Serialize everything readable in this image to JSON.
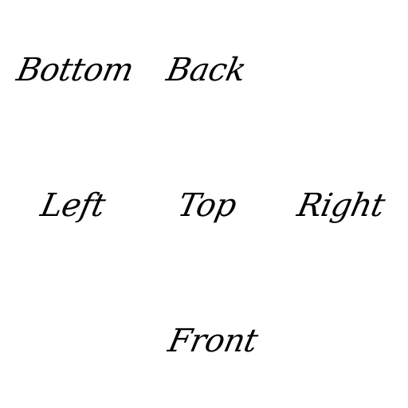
{
  "faces": {
    "bottom": "Bottom",
    "back": "Back",
    "left": "Left",
    "top": "Top",
    "right": "Right",
    "front": "Front"
  },
  "colors": {
    "background": "#ffffff",
    "text": "#000000"
  }
}
